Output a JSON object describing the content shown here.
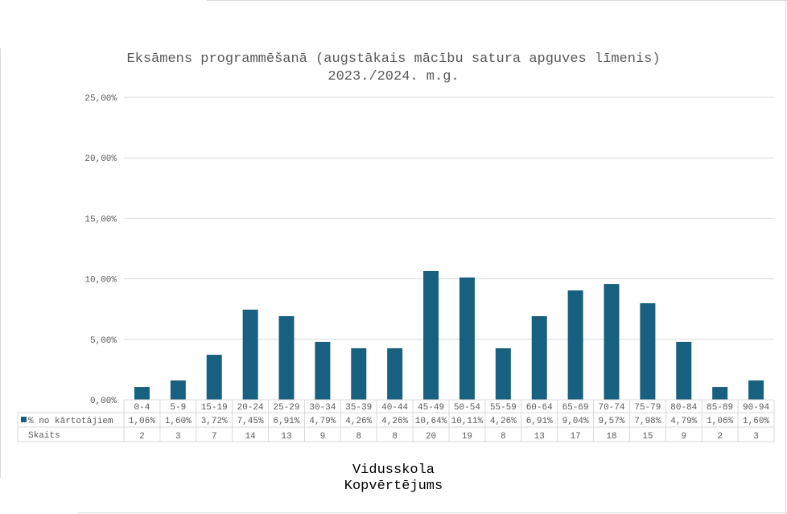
{
  "title_lines": [
    "Eksāmens programmēšanā (augstākais mācību satura apguves līmenis)",
    "2023./2024. m.g."
  ],
  "footer_lines": [
    "Vidusskola",
    "Kopvērtējums"
  ],
  "colors": {
    "bar": "#17607f",
    "grid": "#d9d9d9",
    "text": "#595959"
  },
  "chart_data": {
    "type": "bar",
    "title": "Eksāmens programmēšanā (augstākais mācību satura apguves līmenis) 2023./2024. m.g.",
    "categories": [
      "0-4",
      "5-9",
      "15-19",
      "20-24",
      "25-29",
      "30-34",
      "35-39",
      "40-44",
      "45-49",
      "50-54",
      "55-59",
      "60-64",
      "65-69",
      "70-74",
      "75-79",
      "80-84",
      "85-89",
      "90-94"
    ],
    "series": [
      {
        "name": "% no kārtotājiem",
        "values": [
          1.06,
          1.6,
          3.72,
          7.45,
          6.91,
          4.79,
          4.26,
          4.26,
          10.64,
          10.11,
          4.26,
          6.91,
          9.04,
          9.57,
          7.98,
          4.79,
          1.06,
          1.6
        ],
        "labels": [
          "1,06%",
          "1,60%",
          "3,72%",
          "7,45%",
          "6,91%",
          "4,79%",
          "4,26%",
          "4,26%",
          "10,64%",
          "10,11%",
          "4,26%",
          "6,91%",
          "9,04%",
          "9,57%",
          "7,98%",
          "4,79%",
          "1,06%",
          "1,60%"
        ]
      }
    ],
    "table_rows": [
      {
        "label": "Skaits",
        "values": [
          "2",
          "3",
          "7",
          "14",
          "13",
          "9",
          "8",
          "8",
          "20",
          "19",
          "8",
          "13",
          "17",
          "18",
          "15",
          "9",
          "2",
          "3"
        ]
      }
    ],
    "ylim": [
      0,
      25
    ],
    "yticks": [
      0,
      5,
      10,
      15,
      20,
      25
    ],
    "ytick_labels": [
      "0,00%",
      "5,00%",
      "10,00%",
      "15,00%",
      "20,00%",
      "25,00%"
    ],
    "grid": true,
    "legend": "data-table"
  }
}
